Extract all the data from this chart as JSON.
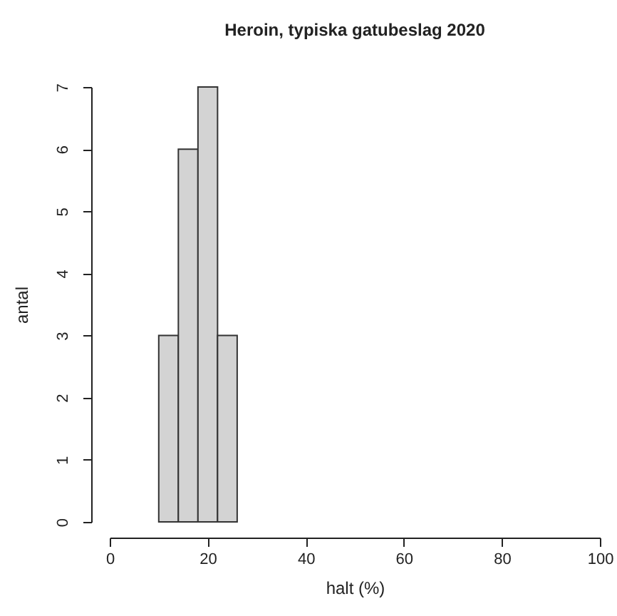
{
  "chart_data": {
    "type": "histogram",
    "title": "Heroin, typiska gatubeslag 2020",
    "xlabel": "halt (%)",
    "ylabel": "antal",
    "bins": [
      10,
      14,
      18,
      22,
      26
    ],
    "values": [
      3,
      6,
      7,
      3
    ],
    "color": "#d3d3d3",
    "xlim": [
      0,
      100
    ],
    "xticks": [
      0,
      20,
      40,
      60,
      80,
      100
    ],
    "ylim": [
      0,
      7
    ],
    "yticks": [
      0,
      1,
      2,
      3,
      4,
      5,
      6,
      7
    ],
    "grid": false
  }
}
